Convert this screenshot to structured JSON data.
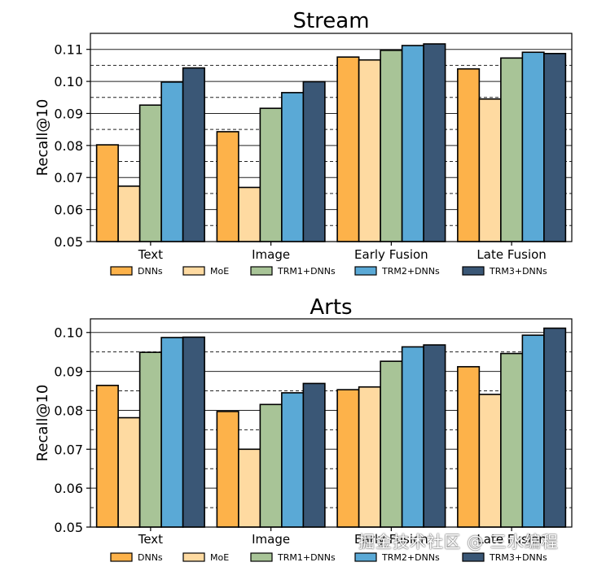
{
  "colors": {
    "series": [
      "#FDB24A",
      "#FEDAA1",
      "#A8C497",
      "#5AA9D6",
      "#3A5776"
    ],
    "edge": "#000000",
    "grid": "#333333"
  },
  "watermark": "掘金技术社区 @ 三水编程",
  "chart_data": [
    {
      "type": "bar",
      "title": "Stream",
      "xlabel": "",
      "ylabel": "Recall@10",
      "ylim": [
        0.05,
        0.115
      ],
      "yticks": [
        0.05,
        0.06,
        0.07,
        0.08,
        0.09,
        0.1,
        0.11
      ],
      "ytick_labels": [
        "0.05",
        "0.06",
        "0.07",
        "0.08",
        "0.09",
        "0.10",
        "0.11"
      ],
      "grid": "horizontal (solid at labeled ticks, dashed at midpoints)",
      "legend": "bottom, single row",
      "categories": [
        "Text",
        "Image",
        "Early Fusion",
        "Late Fusion"
      ],
      "series": [
        {
          "name": "DNNs",
          "values": [
            0.0802,
            0.0843,
            0.1076,
            0.1039
          ]
        },
        {
          "name": "MoE",
          "values": [
            0.0673,
            0.0669,
            0.1067,
            0.0945
          ]
        },
        {
          "name": "TRM1+DNNs",
          "values": [
            0.0926,
            0.0916,
            0.1097,
            0.1073
          ]
        },
        {
          "name": "TRM2+DNNs",
          "values": [
            0.0998,
            0.0965,
            0.1112,
            0.1091
          ]
        },
        {
          "name": "TRM3+DNNs",
          "values": [
            0.1042,
            0.0999,
            0.1117,
            0.1087
          ]
        }
      ]
    },
    {
      "type": "bar",
      "title": "Arts",
      "xlabel": "",
      "ylabel": "Recall@10",
      "ylim": [
        0.05,
        0.1035
      ],
      "yticks": [
        0.05,
        0.06,
        0.07,
        0.08,
        0.09,
        0.1
      ],
      "ytick_labels": [
        "0.05",
        "0.06",
        "0.07",
        "0.08",
        "0.09",
        "0.10"
      ],
      "grid": "horizontal (solid at labeled ticks, dashed at midpoints)",
      "legend": "bottom, single row",
      "categories": [
        "Text",
        "Image",
        "Early Fusion",
        "Late Fusion"
      ],
      "series": [
        {
          "name": "DNNs",
          "values": [
            0.0864,
            0.0797,
            0.0853,
            0.0912
          ]
        },
        {
          "name": "MoE",
          "values": [
            0.0781,
            0.07,
            0.086,
            0.0841
          ]
        },
        {
          "name": "TRM1+DNNs",
          "values": [
            0.0949,
            0.0815,
            0.0926,
            0.0946
          ]
        },
        {
          "name": "TRM2+DNNs",
          "values": [
            0.0987,
            0.0845,
            0.0963,
            0.0993
          ]
        },
        {
          "name": "TRM3+DNNs",
          "values": [
            0.0988,
            0.0869,
            0.0968,
            0.1011
          ]
        }
      ]
    }
  ]
}
